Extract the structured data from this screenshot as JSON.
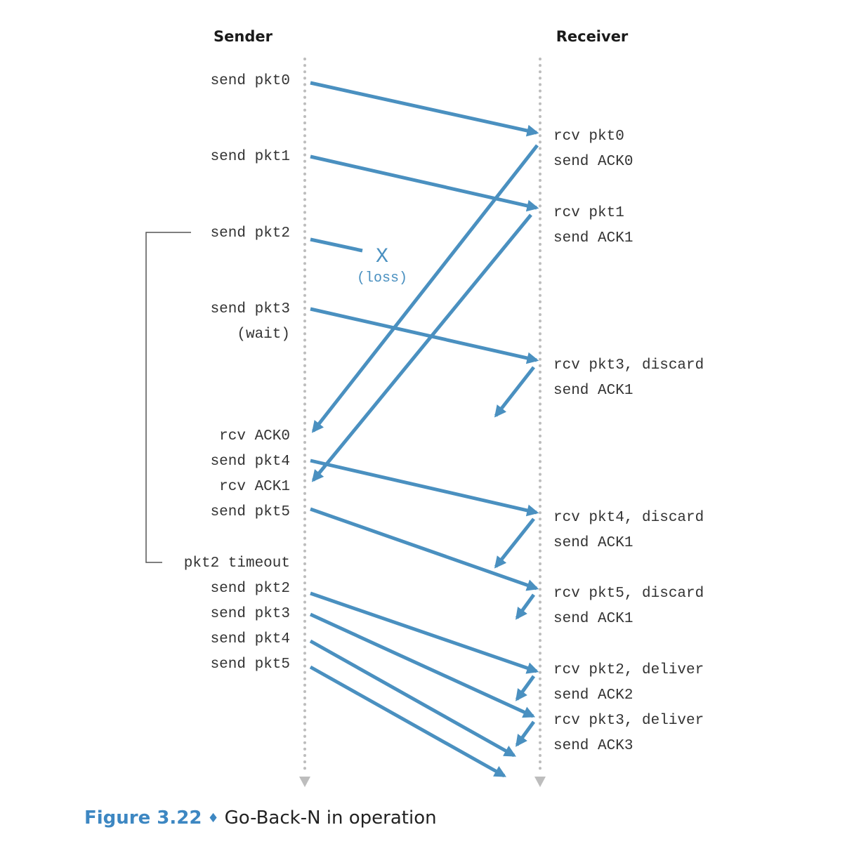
{
  "headers": {
    "sender": "Sender",
    "receiver": "Receiver"
  },
  "sender_events": [
    {
      "id": "s0",
      "text": "send pkt0"
    },
    {
      "id": "s1",
      "text": "send pkt1"
    },
    {
      "id": "s2",
      "text": "send pkt2"
    },
    {
      "id": "s3",
      "text": "send pkt3"
    },
    {
      "id": "s3w",
      "text": "(wait)"
    },
    {
      "id": "sa0",
      "text": "rcv ACK0"
    },
    {
      "id": "s4",
      "text": "send pkt4"
    },
    {
      "id": "sa1",
      "text": "rcv ACK1"
    },
    {
      "id": "s5",
      "text": "send pkt5"
    },
    {
      "id": "to",
      "text": "pkt2 timeout"
    },
    {
      "id": "r2",
      "text": "send pkt2"
    },
    {
      "id": "r3",
      "text": "send pkt3"
    },
    {
      "id": "r4",
      "text": "send pkt4"
    },
    {
      "id": "r5",
      "text": "send pkt5"
    }
  ],
  "receiver_events": [
    {
      "id": "p0",
      "text": "rcv pkt0"
    },
    {
      "id": "a0",
      "text": "send ACK0"
    },
    {
      "id": "p1",
      "text": "rcv pkt1"
    },
    {
      "id": "a1",
      "text": "send ACK1"
    },
    {
      "id": "p3",
      "text": "rcv pkt3, discard"
    },
    {
      "id": "a1b",
      "text": "send ACK1"
    },
    {
      "id": "p4",
      "text": "rcv pkt4, discard"
    },
    {
      "id": "a1c",
      "text": "send ACK1"
    },
    {
      "id": "p5",
      "text": "rcv pkt5, discard"
    },
    {
      "id": "a1d",
      "text": "send ACK1"
    },
    {
      "id": "p2d",
      "text": "rcv pkt2, deliver"
    },
    {
      "id": "a2",
      "text": "send ACK2"
    },
    {
      "id": "p3d",
      "text": "rcv pkt3, deliver"
    },
    {
      "id": "a3",
      "text": "send ACK3"
    }
  ],
  "loss": {
    "mark": "X",
    "label": "(loss)"
  },
  "caption": {
    "figure": "Figure 3.22",
    "text": "Go-Back-N in operation"
  },
  "colors": {
    "arrow": "#4a90c0",
    "timeline": "#bdbdbd",
    "caption_accent": "#3d87c2"
  }
}
